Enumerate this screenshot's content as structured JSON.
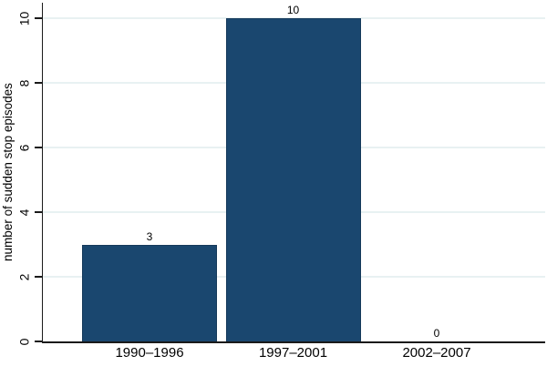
{
  "chart_data": {
    "type": "bar",
    "categories": [
      "1990–1996",
      "1997–2001",
      "2002–2007"
    ],
    "values": [
      3,
      10,
      0
    ],
    "title": "",
    "xlabel": "",
    "ylabel": "number of sudden stop episodes",
    "yticks": [
      0,
      2,
      4,
      6,
      8,
      10
    ],
    "ylim": [
      0,
      10.5
    ],
    "grid": true,
    "legend": "none",
    "colors": {
      "bar_fill": "#1a476f",
      "bar_border": "#15395a",
      "gridline": "#e8f1f2",
      "axis": "#1a1a1a",
      "text": "#000000",
      "background": "#ffffff"
    }
  }
}
